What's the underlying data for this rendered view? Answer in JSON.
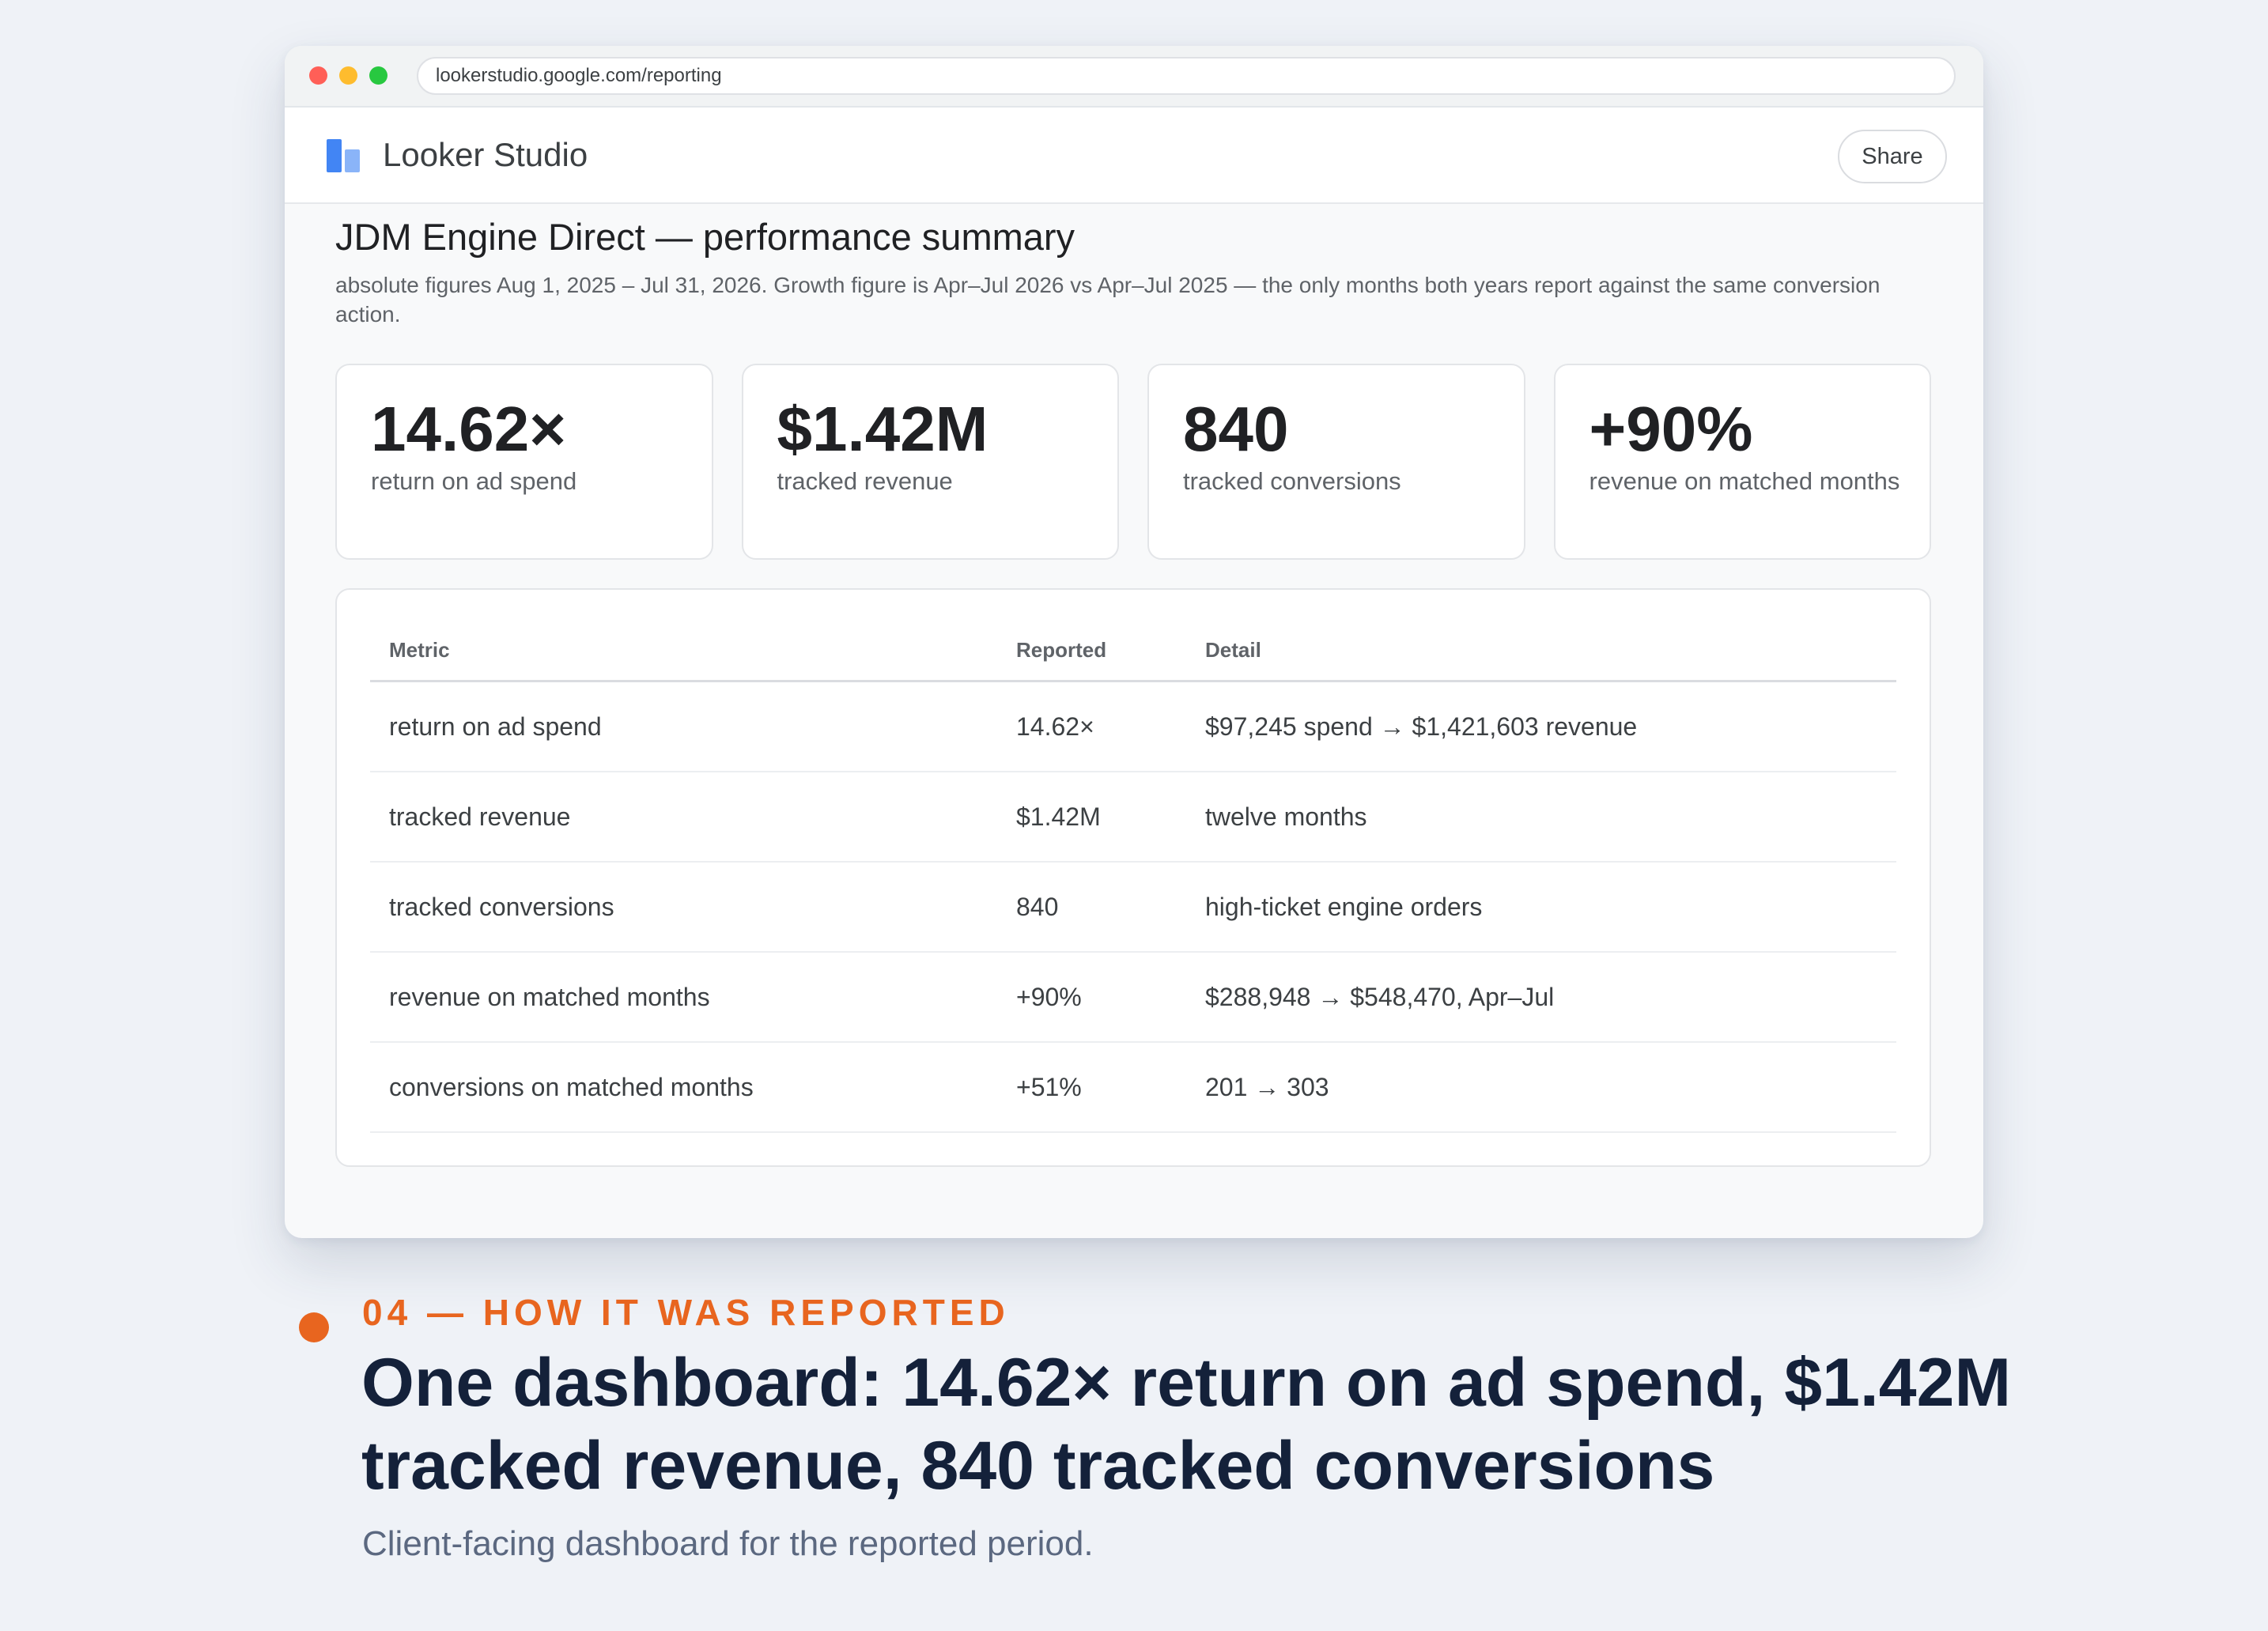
{
  "browser": {
    "url": "lookerstudio.google.com/reporting"
  },
  "app": {
    "name": "Looker Studio",
    "share_label": "Share"
  },
  "report": {
    "title": "JDM Engine Direct — performance summary",
    "subtitle": "absolute figures Aug 1, 2025 – Jul 31, 2026. Growth figure is Apr–Jul 2026 vs Apr–Jul 2025 — the only months both years report against the same conversion action."
  },
  "kpis": [
    {
      "value": "14.62×",
      "label": "return on ad spend"
    },
    {
      "value": "$1.42M",
      "label": "tracked revenue"
    },
    {
      "value": "840",
      "label": "tracked conversions"
    },
    {
      "value": "+90%",
      "label": "revenue on matched months"
    }
  ],
  "table": {
    "headers": [
      "Metric",
      "Reported",
      "Detail"
    ],
    "rows": [
      {
        "metric": "return on ad spend",
        "reported": "14.62×",
        "detail": "$97,245 spend → $1,421,603 revenue"
      },
      {
        "metric": "tracked revenue",
        "reported": "$1.42M",
        "detail": "twelve months"
      },
      {
        "metric": "tracked conversions",
        "reported": "840",
        "detail": "high-ticket engine orders"
      },
      {
        "metric": "revenue on matched months",
        "reported": "+90%",
        "detail": "$288,948 → $548,470, Apr–Jul"
      },
      {
        "metric": "conversions on matched months",
        "reported": "+51%",
        "detail": "201 → 303"
      }
    ]
  },
  "caption": {
    "kicker": "04 — HOW IT WAS REPORTED",
    "headline": "One dashboard: 14.62× return on ad spend, $1.42M tracked revenue, 840 tracked conversions",
    "subtext": "Client-facing dashboard for the reported period."
  },
  "colors": {
    "accent": "#e8651f",
    "headline": "#14213a",
    "logo_primary": "#4285f4",
    "logo_secondary": "#8ab4f8"
  }
}
